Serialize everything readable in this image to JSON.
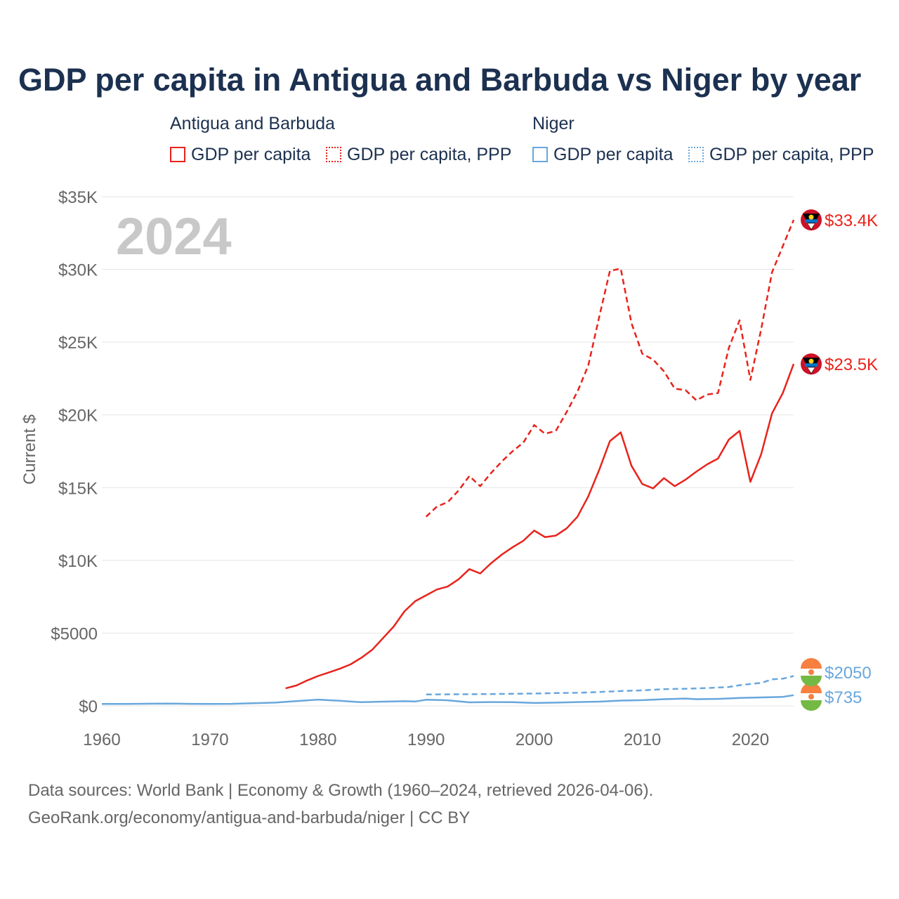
{
  "title": "GDP per capita in Antigua and Barbuda vs Niger by year",
  "legend": {
    "groups": [
      {
        "name": "Antigua and Barbuda",
        "items": [
          "GDP per capita",
          "GDP per capita, PPP"
        ]
      },
      {
        "name": "Niger",
        "items": [
          "GDP per capita",
          "GDP per capita, PPP"
        ]
      }
    ]
  },
  "colors": {
    "antigua": "#e8231b",
    "niger": "#69a7dc",
    "grid": "#e6e6e6",
    "axis_text": "#666666",
    "year_watermark": "#c8c8c8"
  },
  "year_label": "2024",
  "source": {
    "line1": "Data sources: World Bank | Economy & Growth (1960–2024, retrieved 2026-04-06).",
    "line2": "GeoRank.org/economy/antigua-and-barbuda/niger | CC BY"
  },
  "chart_data": {
    "type": "line",
    "title": "GDP per capita in Antigua and Barbuda vs Niger by year",
    "xlabel": "",
    "ylabel": "Current $",
    "xlim": [
      1960,
      2024
    ],
    "ylim": [
      0,
      35000
    ],
    "xticks": [
      1960,
      1970,
      1980,
      1990,
      2000,
      2010,
      2020
    ],
    "xtick_labels": [
      "1960",
      "1970",
      "1980",
      "1990",
      "2000",
      "2010",
      "2020"
    ],
    "yticks": [
      0,
      5000,
      10000,
      15000,
      20000,
      25000,
      30000,
      35000
    ],
    "ytick_labels": [
      "$0",
      "$5000",
      "$10K",
      "$15K",
      "$20K",
      "$25K",
      "$30K",
      "$35K"
    ],
    "grid": true,
    "legend_position": "top",
    "series": [
      {
        "name": "Antigua and Barbuda GDP per capita",
        "country": "antigua",
        "style": "solid",
        "end_label": "$23.5K",
        "x": [
          1977,
          1978,
          1979,
          1980,
          1981,
          1982,
          1983,
          1984,
          1985,
          1986,
          1987,
          1988,
          1989,
          1990,
          1991,
          1992,
          1993,
          1994,
          1995,
          1996,
          1997,
          1998,
          1999,
          2000,
          2001,
          2002,
          2003,
          2004,
          2005,
          2006,
          2007,
          2008,
          2009,
          2010,
          2011,
          2012,
          2013,
          2014,
          2015,
          2016,
          2017,
          2018,
          2019,
          2020,
          2021,
          2022,
          2023,
          2024
        ],
        "values": [
          1200,
          1400,
          1750,
          2050,
          2300,
          2550,
          2850,
          3300,
          3850,
          4650,
          5450,
          6500,
          7200,
          7600,
          8000,
          8200,
          8700,
          9400,
          9100,
          9800,
          10400,
          10900,
          11350,
          12050,
          11600,
          11700,
          12200,
          13000,
          14400,
          16200,
          18200,
          18800,
          16500,
          15250,
          14950,
          15650,
          15100,
          15550,
          16100,
          16600,
          17000,
          18300,
          18900,
          15400,
          17300,
          20100,
          21500,
          23500
        ]
      },
      {
        "name": "Antigua and Barbuda GDP per capita, PPP",
        "country": "antigua",
        "style": "dashed",
        "end_label": "$33.4K",
        "x": [
          1990,
          1991,
          1992,
          1993,
          1994,
          1995,
          1996,
          1997,
          1998,
          1999,
          2000,
          2001,
          2002,
          2003,
          2004,
          2005,
          2006,
          2007,
          2008,
          2009,
          2010,
          2011,
          2012,
          2013,
          2014,
          2015,
          2016,
          2017,
          2018,
          2019,
          2020,
          2021,
          2022,
          2023,
          2024
        ],
        "values": [
          13000,
          13700,
          14000,
          14800,
          15800,
          15100,
          16000,
          16800,
          17500,
          18100,
          19300,
          18700,
          18900,
          20200,
          21600,
          23400,
          26700,
          29900,
          30050,
          26300,
          24200,
          23800,
          23000,
          21800,
          21700,
          21000,
          21400,
          21500,
          24600,
          26500,
          22400,
          25900,
          29800,
          31600,
          33400
        ]
      },
      {
        "name": "Niger GDP per capita",
        "country": "niger",
        "style": "solid",
        "end_label": "$735",
        "x": [
          1960,
          1962,
          1964,
          1966,
          1968,
          1970,
          1972,
          1974,
          1976,
          1978,
          1980,
          1982,
          1984,
          1986,
          1988,
          1989,
          1990,
          1992,
          1994,
          1996,
          1998,
          2000,
          2002,
          2004,
          2006,
          2008,
          2010,
          2012,
          2014,
          2015,
          2017,
          2019,
          2020,
          2022,
          2023,
          2024
        ],
        "values": [
          130,
          135,
          145,
          160,
          140,
          130,
          140,
          185,
          220,
          330,
          430,
          350,
          250,
          290,
          320,
          300,
          420,
          380,
          240,
          260,
          250,
          200,
          220,
          260,
          290,
          360,
          390,
          460,
          500,
          460,
          480,
          540,
          560,
          600,
          620,
          735
        ]
      },
      {
        "name": "Niger GDP per capita, PPP",
        "country": "niger",
        "style": "dashed",
        "end_label": "$2050",
        "x": [
          1990,
          1992,
          1994,
          1996,
          1998,
          2000,
          2002,
          2004,
          2006,
          2008,
          2010,
          2012,
          2014,
          2016,
          2018,
          2019,
          2020,
          2021,
          2022,
          2023,
          2024
        ],
        "values": [
          780,
          790,
          800,
          810,
          830,
          850,
          880,
          900,
          950,
          1020,
          1060,
          1150,
          1180,
          1220,
          1300,
          1420,
          1500,
          1580,
          1820,
          1870,
          2050
        ]
      }
    ]
  }
}
